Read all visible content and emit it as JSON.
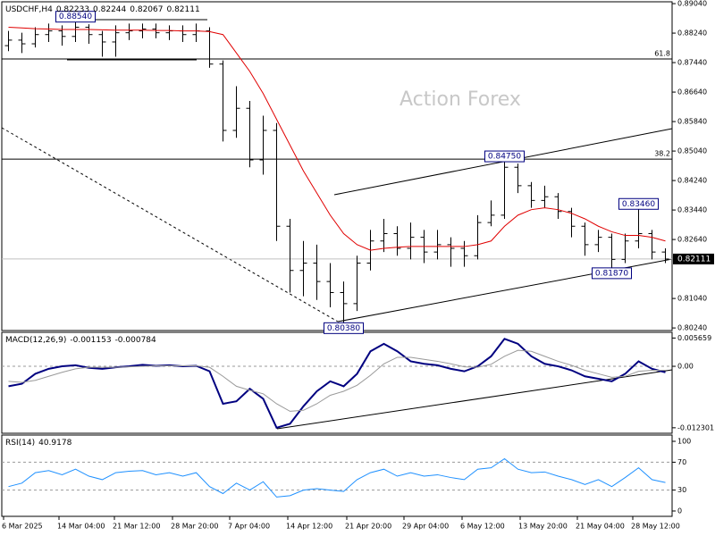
{
  "chart_data": [
    {
      "type": "ohlc",
      "title": "USDCHF,H4",
      "header_values": [
        0.82233,
        0.82244,
        0.82067,
        0.82111
      ],
      "watermark": "Action Forex",
      "ylim": [
        0.8017,
        0.8909
      ],
      "yticks": [
        {
          "value": 0.8904,
          "label": "0.89040"
        },
        {
          "value": 0.8824,
          "label": "0.88240"
        },
        {
          "value": 0.8744,
          "label": "0.87440"
        },
        {
          "value": 0.8664,
          "label": "0.86640"
        },
        {
          "value": 0.8584,
          "label": "0.85840"
        },
        {
          "value": 0.8504,
          "label": "0.85040"
        },
        {
          "value": 0.8424,
          "label": "0.84240"
        },
        {
          "value": 0.8344,
          "label": "0.83440"
        },
        {
          "value": 0.8264,
          "label": "0.82640"
        },
        {
          "value": 0.8104,
          "label": "0.81040"
        },
        {
          "value": 0.8024,
          "label": "0.80240"
        }
      ],
      "current_price": 0.82111,
      "open": [
        0.879,
        0.8805,
        0.8795,
        0.882,
        0.883,
        0.8815,
        0.884,
        0.882,
        0.88,
        0.8825,
        0.883,
        0.8835,
        0.8825,
        0.883,
        0.882,
        0.883,
        0.874,
        0.856,
        0.862,
        0.848,
        0.856,
        0.83,
        0.818,
        0.82,
        0.815,
        0.812,
        0.809,
        0.82,
        0.826,
        0.828,
        0.824,
        0.827,
        0.823,
        0.825,
        0.824,
        0.822,
        0.831,
        0.833,
        0.846,
        0.841,
        0.837,
        0.838,
        0.834,
        0.83,
        0.825,
        0.827,
        0.821,
        0.826,
        0.828,
        0.823
      ],
      "high": [
        0.883,
        0.8825,
        0.884,
        0.885,
        0.8845,
        0.8854,
        0.8848,
        0.883,
        0.8845,
        0.885,
        0.885,
        0.885,
        0.8845,
        0.8845,
        0.885,
        0.884,
        0.875,
        0.868,
        0.864,
        0.86,
        0.858,
        0.832,
        0.826,
        0.825,
        0.82,
        0.815,
        0.822,
        0.829,
        0.832,
        0.83,
        0.831,
        0.829,
        0.829,
        0.827,
        0.826,
        0.833,
        0.837,
        0.8475,
        0.847,
        0.842,
        0.841,
        0.839,
        0.835,
        0.831,
        0.829,
        0.828,
        0.828,
        0.8346,
        0.829,
        0.824
      ],
      "low": [
        0.8775,
        0.877,
        0.8785,
        0.88,
        0.879,
        0.88,
        0.8795,
        0.876,
        0.876,
        0.8805,
        0.881,
        0.881,
        0.8805,
        0.88,
        0.88,
        0.873,
        0.853,
        0.854,
        0.846,
        0.844,
        0.826,
        0.812,
        0.811,
        0.81,
        0.808,
        0.8038,
        0.807,
        0.818,
        0.823,
        0.822,
        0.821,
        0.82,
        0.821,
        0.819,
        0.819,
        0.821,
        0.83,
        0.832,
        0.839,
        0.835,
        0.835,
        0.832,
        0.827,
        0.822,
        0.823,
        0.8187,
        0.82,
        0.824,
        0.821,
        0.82
      ],
      "close": [
        0.8805,
        0.8795,
        0.882,
        0.883,
        0.8815,
        0.884,
        0.882,
        0.88,
        0.8825,
        0.883,
        0.8835,
        0.8825,
        0.883,
        0.882,
        0.883,
        0.874,
        0.856,
        0.862,
        0.848,
        0.856,
        0.83,
        0.818,
        0.82,
        0.815,
        0.812,
        0.809,
        0.82,
        0.826,
        0.828,
        0.824,
        0.827,
        0.823,
        0.825,
        0.824,
        0.822,
        0.831,
        0.833,
        0.846,
        0.841,
        0.837,
        0.838,
        0.834,
        0.83,
        0.825,
        0.827,
        0.821,
        0.826,
        0.828,
        0.823,
        0.8211
      ],
      "bar_color": "#000000",
      "moving_average": {
        "color": "#e00000",
        "values": [
          0.884,
          0.8838,
          0.8836,
          0.8835,
          0.8834,
          0.8834,
          0.8834,
          0.8833,
          0.8832,
          0.8832,
          0.8832,
          0.8831,
          0.8831,
          0.883,
          0.883,
          0.8828,
          0.882,
          0.877,
          0.872,
          0.866,
          0.859,
          0.852,
          0.845,
          0.839,
          0.833,
          0.828,
          0.825,
          0.8235,
          0.824,
          0.8243,
          0.8245,
          0.8245,
          0.8245,
          0.8245,
          0.8245,
          0.825,
          0.826,
          0.83,
          0.833,
          0.8345,
          0.835,
          0.8345,
          0.8335,
          0.832,
          0.83,
          0.8285,
          0.8275,
          0.8275,
          0.827,
          0.826
        ]
      },
      "levels": [
        {
          "value": 0.8754,
          "label": "61.8"
        },
        {
          "value": 0.8482,
          "label": "38.2"
        }
      ],
      "annotations": [
        {
          "value": 0.8854,
          "label": "0.88540"
        },
        {
          "value": 0.8475,
          "label": "0.84750"
        },
        {
          "value": 0.8346,
          "label": "0.83460"
        },
        {
          "value": 0.8187,
          "label": "0.81870"
        },
        {
          "value": 0.8038,
          "label": "0.80380"
        }
      ]
    },
    {
      "type": "line",
      "title": "MACD(12,26,9)",
      "header_values": [
        -0.001153,
        -0.000784
      ],
      "ylim": [
        -0.0134,
        0.0068
      ],
      "yticks": [
        0.005659,
        {
          "value": 0,
          "label": "0.00"
        },
        -0.012301
      ],
      "series": [
        {
          "color": "#000080",
          "values": [
            -0.004,
            -0.0035,
            -0.0015,
            -0.0005,
            0.0,
            0.0002,
            -0.0003,
            -0.0005,
            -0.0002,
            0.0,
            0.0003,
            0.0001,
            0.0002,
            0.0,
            0.0001,
            -0.001,
            -0.0075,
            -0.007,
            -0.0045,
            -0.0065,
            -0.0123,
            -0.0115,
            -0.008,
            -0.005,
            -0.003,
            -0.004,
            -0.0015,
            0.003,
            0.0045,
            0.003,
            0.001,
            0.0005,
            0.0002,
            -0.0005,
            -0.001,
            0.0,
            0.002,
            0.0055,
            0.0045,
            0.002,
            0.0005,
            0.0,
            -0.0008,
            -0.002,
            -0.0025,
            -0.003,
            -0.0015,
            0.001,
            -0.0005,
            -0.0012
          ]
        },
        {
          "color": "#999999",
          "values": [
            -0.003,
            -0.0032,
            -0.0028,
            -0.002,
            -0.0012,
            -0.0005,
            -0.0002,
            -0.0002,
            -0.0002,
            -0.0001,
            0.0,
            0.0001,
            0.0001,
            0.0001,
            0.0001,
            -0.0002,
            -0.002,
            -0.004,
            -0.0048,
            -0.0055,
            -0.0075,
            -0.009,
            -0.0088,
            -0.0075,
            -0.0058,
            -0.005,
            -0.0038,
            -0.0018,
            0.0005,
            0.0018,
            0.0018,
            0.0014,
            0.001,
            0.0005,
            -0.0001,
            -0.0002,
            0.0004,
            0.002,
            0.0032,
            0.003,
            0.002,
            0.001,
            0.0002,
            -0.0008,
            -0.0015,
            -0.0022,
            -0.002,
            -0.001,
            -0.0008,
            -0.0008
          ]
        }
      ]
    },
    {
      "type": "line",
      "title": "RSI(14)",
      "header_values": [
        40.9178
      ],
      "ylim": [
        -7.7,
        109
      ],
      "yticks": [
        100,
        70,
        30,
        0
      ],
      "series": [
        {
          "color": "#1e90ff",
          "values": [
            35,
            40,
            55,
            58,
            52,
            60,
            50,
            45,
            55,
            57,
            58,
            52,
            55,
            50,
            55,
            35,
            25,
            40,
            30,
            42,
            20,
            22,
            30,
            32,
            30,
            28,
            45,
            55,
            60,
            50,
            55,
            50,
            52,
            48,
            45,
            60,
            62,
            75,
            60,
            55,
            56,
            50,
            45,
            38,
            45,
            35,
            48,
            62,
            45,
            40.9178
          ]
        }
      ],
      "x_labels": [
        "6 Mar 2025",
        "14 Mar 04:00",
        "21 Mar 12:00",
        "28 Mar 20:00",
        "7 Apr 04:00",
        "14 Apr 12:00",
        "21 Apr 20:00",
        "29 Apr 04:00",
        "6 May 12:00",
        "13 May 20:00",
        "21 May 04:00",
        "28 May 12:00"
      ]
    }
  ]
}
